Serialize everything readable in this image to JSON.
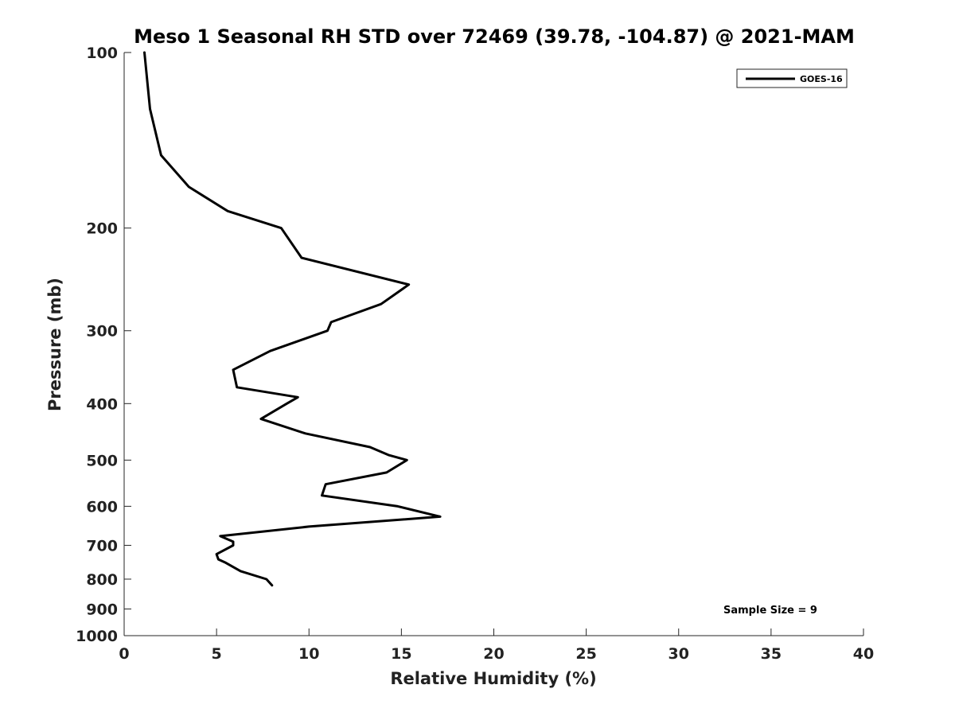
{
  "chart_data": {
    "type": "line",
    "title": "Meso 1 Seasonal RH STD over 72469 (39.78, -104.87) @ 2021-MAM",
    "xlabel": "Relative Humidity (%)",
    "ylabel": "Pressure (mb)",
    "xlim": [
      0,
      40
    ],
    "ylim": [
      1000,
      100
    ],
    "yscale": "log",
    "xticks": [
      0,
      5,
      10,
      15,
      20,
      25,
      30,
      35,
      40
    ],
    "yticks": [
      100,
      200,
      300,
      400,
      500,
      600,
      700,
      800,
      900,
      1000
    ],
    "legend": {
      "entries": [
        "GOES-16"
      ],
      "position": "top-right"
    },
    "annotation": "Sample Size = 9",
    "series": [
      {
        "name": "GOES-16",
        "color": "#000000",
        "points": [
          {
            "rh": 1.1,
            "p": 100
          },
          {
            "rh": 1.4,
            "p": 125
          },
          {
            "rh": 2.0,
            "p": 150
          },
          {
            "rh": 3.5,
            "p": 170
          },
          {
            "rh": 5.6,
            "p": 187
          },
          {
            "rh": 8.5,
            "p": 200
          },
          {
            "rh": 9.6,
            "p": 225
          },
          {
            "rh": 15.4,
            "p": 250
          },
          {
            "rh": 13.9,
            "p": 270
          },
          {
            "rh": 11.2,
            "p": 290
          },
          {
            "rh": 11.0,
            "p": 300
          },
          {
            "rh": 7.9,
            "p": 325
          },
          {
            "rh": 5.9,
            "p": 350
          },
          {
            "rh": 6.1,
            "p": 375
          },
          {
            "rh": 9.4,
            "p": 390
          },
          {
            "rh": 8.8,
            "p": 400
          },
          {
            "rh": 7.4,
            "p": 425
          },
          {
            "rh": 9.8,
            "p": 450
          },
          {
            "rh": 13.3,
            "p": 475
          },
          {
            "rh": 14.3,
            "p": 490
          },
          {
            "rh": 15.3,
            "p": 500
          },
          {
            "rh": 14.2,
            "p": 525
          },
          {
            "rh": 10.9,
            "p": 550
          },
          {
            "rh": 10.7,
            "p": 575
          },
          {
            "rh": 14.8,
            "p": 600
          },
          {
            "rh": 17.1,
            "p": 625
          },
          {
            "rh": 10.0,
            "p": 650
          },
          {
            "rh": 5.2,
            "p": 675
          },
          {
            "rh": 5.9,
            "p": 690
          },
          {
            "rh": 5.9,
            "p": 700
          },
          {
            "rh": 5.0,
            "p": 725
          },
          {
            "rh": 5.1,
            "p": 740
          },
          {
            "rh": 5.5,
            "p": 750
          },
          {
            "rh": 6.3,
            "p": 775
          },
          {
            "rh": 7.7,
            "p": 800
          },
          {
            "rh": 8.0,
            "p": 820
          }
        ]
      }
    ]
  }
}
